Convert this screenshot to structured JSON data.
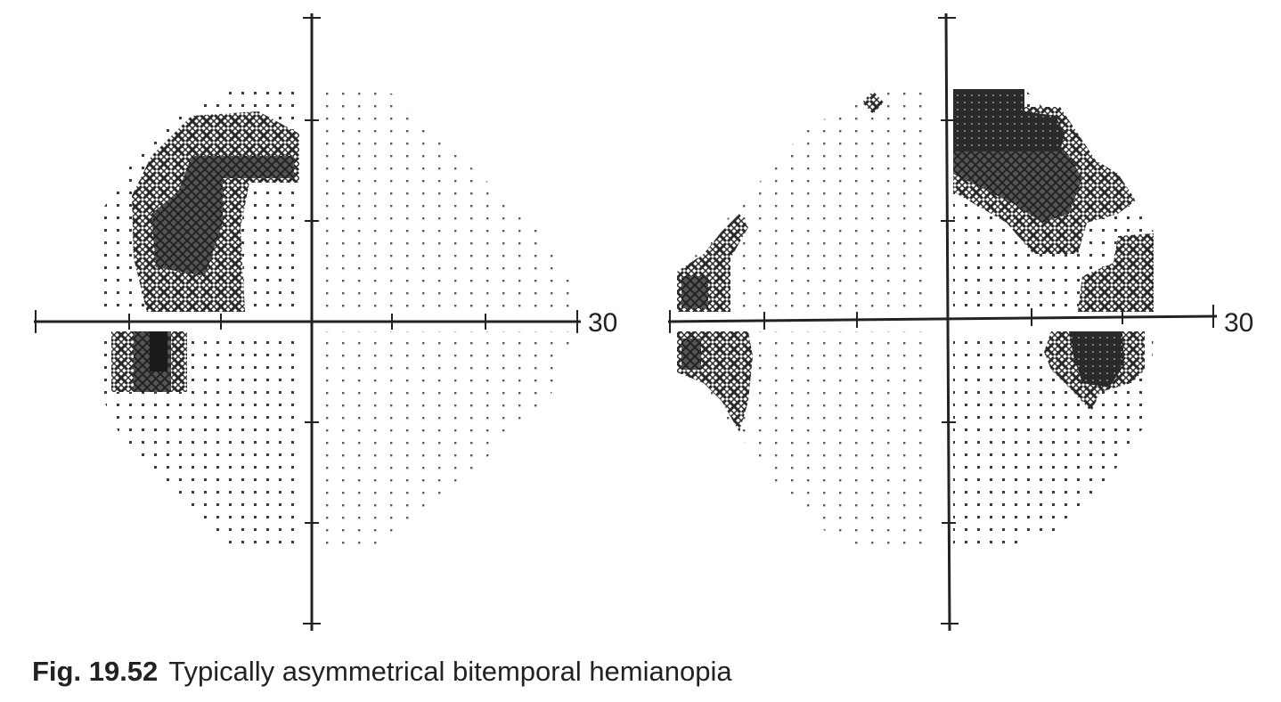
{
  "figure": {
    "number": "Fig. 19.52",
    "caption": "Typically asymmetrical bitemporal hemianopia"
  },
  "plots": [
    {
      "id": "left-eye",
      "axis_label": "30"
    },
    {
      "id": "right-eye",
      "axis_label": "30"
    }
  ],
  "colors": {
    "ink": "#2a2a2a",
    "dense": "#1a1a1a",
    "background": "#ffffff"
  }
}
